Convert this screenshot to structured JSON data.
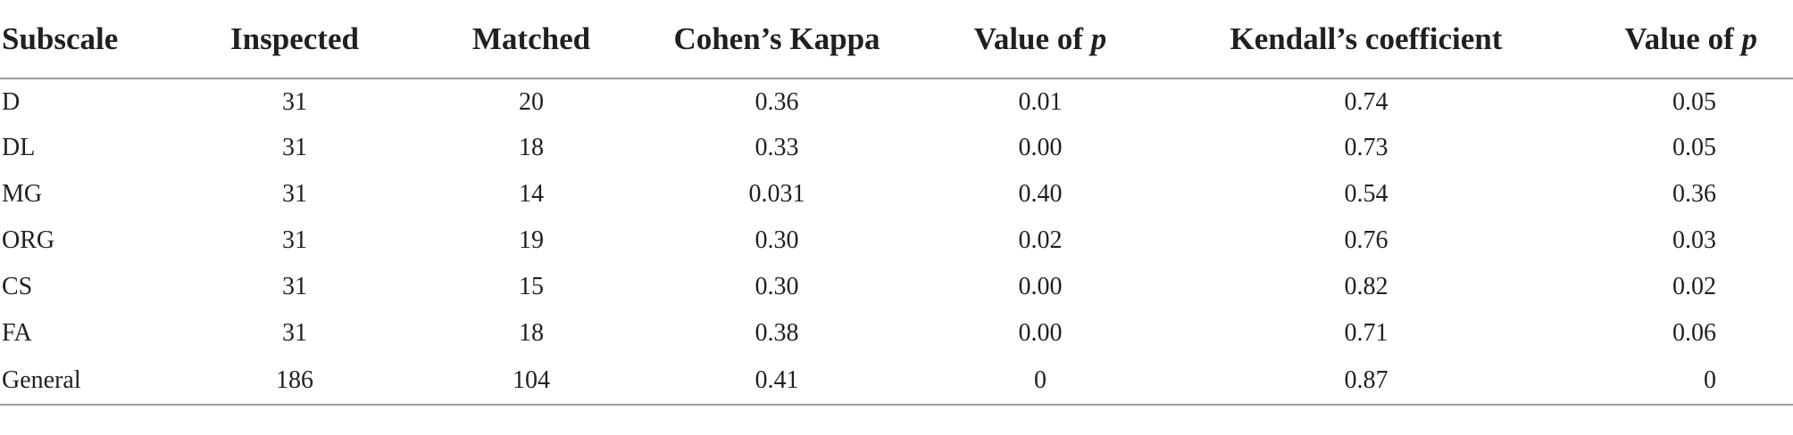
{
  "table": {
    "headers": [
      {
        "label": "Subscale"
      },
      {
        "label": "Inspected"
      },
      {
        "label": "Matched"
      },
      {
        "label": "Cohen’s Kappa"
      },
      {
        "label": "Value of ",
        "italic_suffix": "p"
      },
      {
        "label": "Kendall’s coefficient"
      },
      {
        "label": "Value of ",
        "italic_suffix": "p"
      }
    ],
    "rows": [
      {
        "subscale": "D",
        "inspected": "31",
        "matched": "20",
        "kappa": "0.36",
        "p_kappa": "0.01",
        "kendall": "0.74",
        "p_kendall": "0.05"
      },
      {
        "subscale": "DL",
        "inspected": "31",
        "matched": "18",
        "kappa": "0.33",
        "p_kappa": "0.00",
        "kendall": "0.73",
        "p_kendall": "0.05"
      },
      {
        "subscale": "MG",
        "inspected": "31",
        "matched": "14",
        "kappa": "0.031",
        "p_kappa": "0.40",
        "kendall": "0.54",
        "p_kendall": "0.36"
      },
      {
        "subscale": "ORG",
        "inspected": "31",
        "matched": "19",
        "kappa": "0.30",
        "p_kappa": "0.02",
        "kendall": "0.76",
        "p_kendall": "0.03"
      },
      {
        "subscale": "CS",
        "inspected": "31",
        "matched": "15",
        "kappa": "0.30",
        "p_kappa": "0.00",
        "kendall": "0.82",
        "p_kendall": "0.02"
      },
      {
        "subscale": "FA",
        "inspected": "31",
        "matched": "18",
        "kappa": "0.38",
        "p_kappa": "0.00",
        "kendall": "0.71",
        "p_kendall": "0.06"
      },
      {
        "subscale": "General",
        "inspected": "186",
        "matched": "104",
        "kappa": "0.41",
        "p_kappa": "0",
        "kendall": "0.87",
        "p_kendall": "0"
      }
    ]
  }
}
